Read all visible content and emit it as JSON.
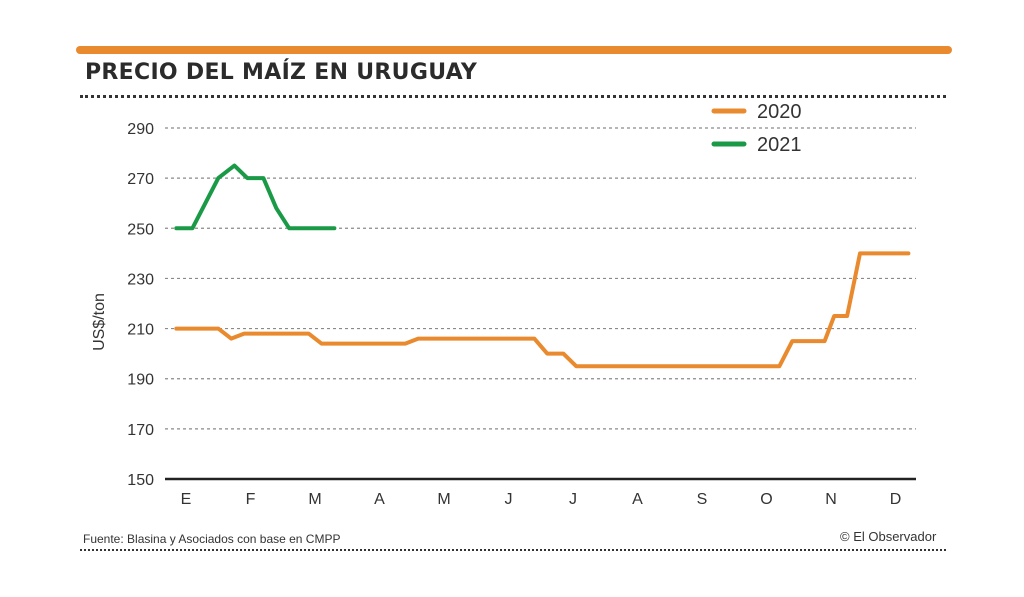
{
  "colors": {
    "accent": "#e98a2e",
    "series_2020": "#e98a2e",
    "series_2021": "#1a9a47",
    "text": "#333333"
  },
  "chart_data": {
    "type": "line",
    "title": "PRECIO DEL MAÍZ EN URUGUAY",
    "xlabel": "",
    "ylabel": "US$/ton",
    "ylim": [
      150,
      290
    ],
    "yticks": [
      150,
      170,
      190,
      210,
      230,
      250,
      270,
      290
    ],
    "months": [
      "E",
      "F",
      "M",
      "A",
      "M",
      "J",
      "J",
      "A",
      "S",
      "O",
      "N",
      "D"
    ],
    "xlim": [
      0,
      11.2
    ],
    "legend": "top-right",
    "grid": true,
    "series": [
      {
        "name": "2020",
        "x": [
          -0.15,
          0.5,
          0.7,
          0.9,
          1.9,
          2.1,
          3.4,
          3.6,
          5.4,
          5.6,
          5.85,
          6.05,
          9.2,
          9.4,
          9.9,
          10.05,
          10.25,
          10.45,
          10.7,
          11.2
        ],
        "values": [
          210,
          210,
          206,
          208,
          208,
          204,
          204,
          206,
          206,
          200,
          200,
          195,
          195,
          205,
          205,
          215,
          215,
          240,
          240,
          240
        ]
      },
      {
        "name": "2021",
        "x": [
          -0.15,
          0.1,
          0.5,
          0.75,
          0.95,
          1.2,
          1.4,
          1.6,
          2.3
        ],
        "values": [
          250,
          250,
          270,
          275,
          270,
          270,
          258,
          250,
          250
        ]
      }
    ]
  },
  "footer": {
    "source": "Fuente: Blasina y Asociados con base en CMPP",
    "credit": "© El Observador"
  }
}
